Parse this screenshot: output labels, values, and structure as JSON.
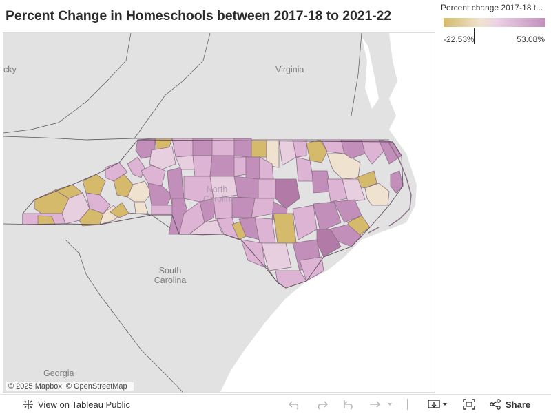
{
  "title": "Percent Change in Homeschools between 2017-18 to 2021-22",
  "map": {
    "place_labels": {
      "kentucky_partial": "cky",
      "virginia": "Virginia",
      "north_carolina": "North Carolina",
      "south_carolina": "South Carolina",
      "georgia": "Georgia"
    },
    "attribution": [
      "© 2025 Mapbox",
      "© OpenStreetMap"
    ],
    "colors": {
      "water": "#ffffff",
      "land": "#e2e2e2",
      "low": "#d4ba6a",
      "neutral": "#efe3cf",
      "mid": "#ddb4d4",
      "high": "#c28fbb",
      "highest": "#b27aa6"
    }
  },
  "legend": {
    "title": "Percent change 2017-18 t...",
    "min_label": "-22.53%",
    "max_label": "53.08%",
    "min_value": -22.53,
    "max_value": 53.08,
    "marker_value": 0
  },
  "toolbar": {
    "view_label": "View on Tableau Public",
    "share_label": "Share",
    "icons": [
      "tableau-logo-icon",
      "undo-icon",
      "redo-icon",
      "revert-icon",
      "refresh-icon",
      "download-icon",
      "fullscreen-icon",
      "share-icon"
    ]
  }
}
